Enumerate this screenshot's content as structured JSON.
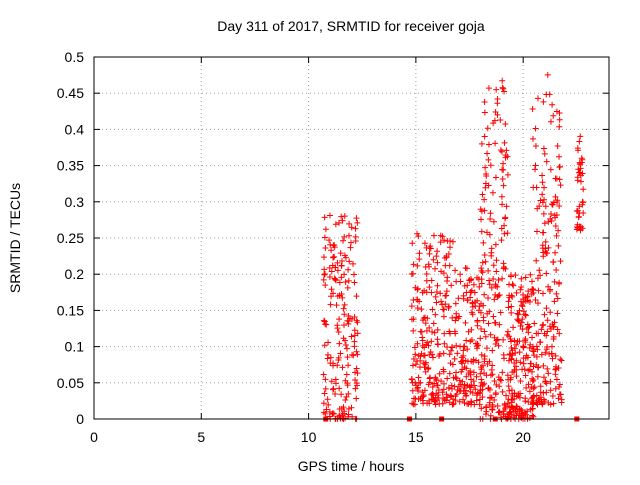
{
  "chart_data": {
    "type": "scatter",
    "title": "Day 311 of 2017, SRMTID for receiver goja",
    "xlabel": "GPS time / hours",
    "ylabel": "SRMTID / TECUs",
    "xlim": [
      0,
      24
    ],
    "ylim": [
      0,
      0.5
    ],
    "xticks": [
      0,
      5,
      10,
      15,
      20
    ],
    "xtick_labels": [
      "0",
      "5",
      "10",
      "15",
      "20"
    ],
    "yticks": [
      0,
      0.05,
      0.1,
      0.15,
      0.2,
      0.25,
      0.3,
      0.35,
      0.4,
      0.45,
      0.5
    ],
    "ytick_labels": [
      "0",
      "0.05",
      "0.1",
      "0.15",
      "0.2",
      "0.25",
      "0.3",
      "0.35",
      "0.4",
      "0.45",
      "0.5"
    ],
    "grid": true,
    "marker": "+",
    "marker_color": "#ff0000",
    "clusters": [
      {
        "x_range": [
          10.7,
          12.3
        ],
        "y_range": [
          0.0,
          0.29
        ],
        "count": 190
      },
      {
        "x_range": [
          14.8,
          16.8
        ],
        "y_range": [
          0.02,
          0.26
        ],
        "count": 230
      },
      {
        "x_range": [
          16.8,
          18.2
        ],
        "y_range": [
          0.02,
          0.22
        ],
        "count": 160
      },
      {
        "x_range": [
          18.0,
          19.3
        ],
        "y_range": [
          0.0,
          0.47
        ],
        "count": 190
      },
      {
        "x_range": [
          19.3,
          20.5
        ],
        "y_range": [
          0.0,
          0.2
        ],
        "count": 190
      },
      {
        "x_range": [
          20.4,
          21.8
        ],
        "y_range": [
          0.02,
          0.48
        ],
        "count": 200
      },
      {
        "x_range": [
          22.5,
          22.8
        ],
        "y_range": [
          0.26,
          0.4
        ],
        "count": 40
      }
    ],
    "zero_markers_x": [
      10.8,
      14.7,
      16.2,
      18.7,
      22.5
    ]
  }
}
